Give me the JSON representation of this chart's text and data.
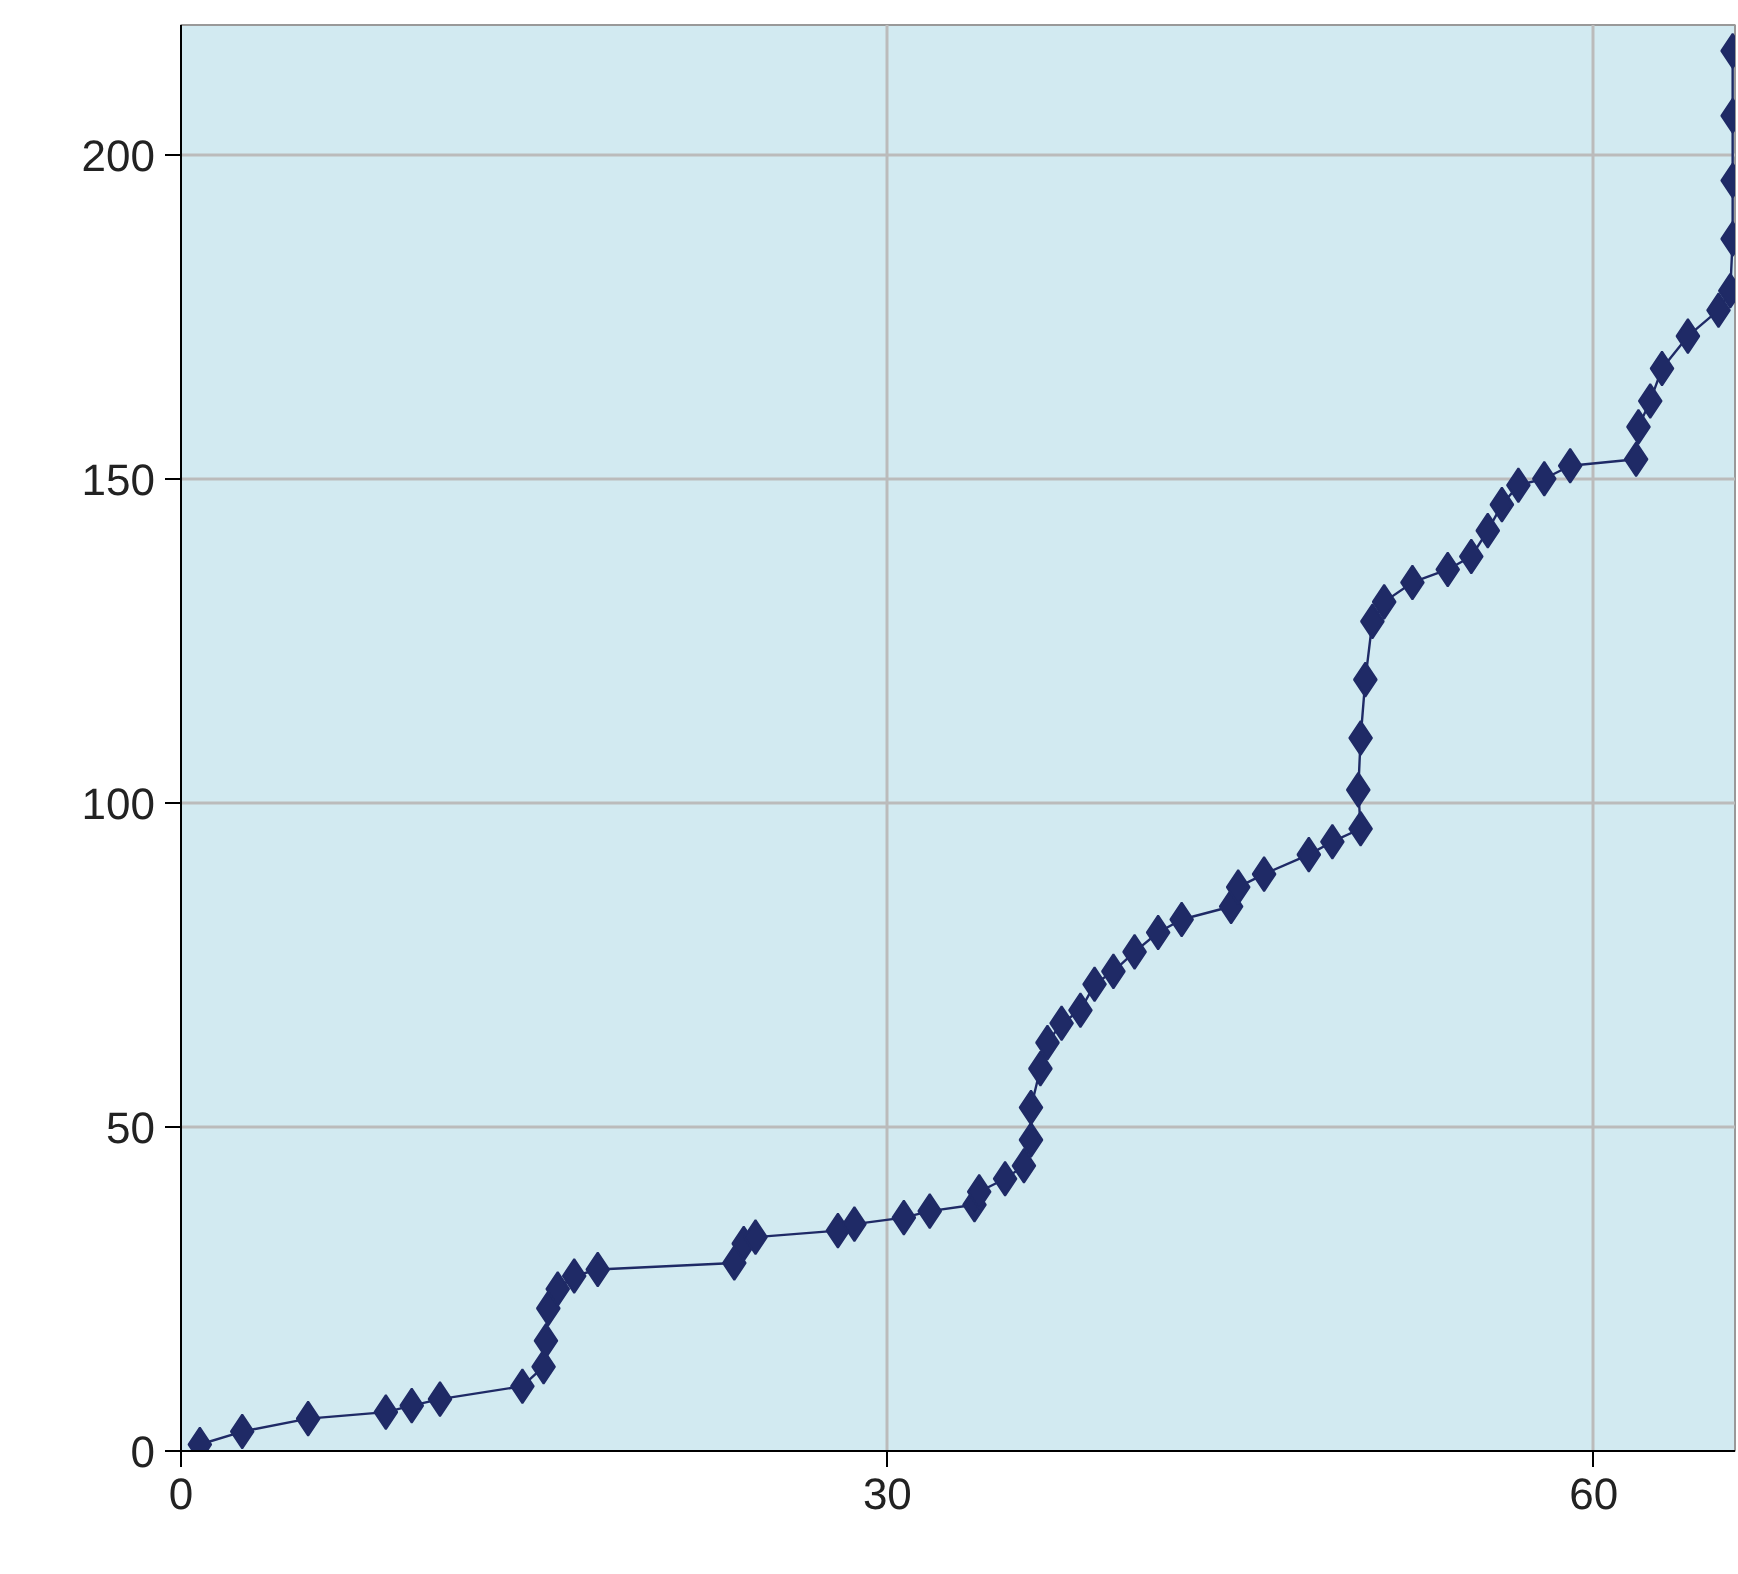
{
  "chart_data": {
    "type": "line",
    "marker": "diamond",
    "grid": true,
    "xlim": [
      0,
      66
    ],
    "ylim": [
      0,
      220
    ],
    "xticks": [
      0,
      30,
      60
    ],
    "yticks": [
      0,
      50,
      100,
      150,
      200
    ],
    "series": [
      {
        "color": "#1f2a66",
        "x": [
          0.8,
          2.6,
          5.4,
          8.7,
          9.8,
          11,
          14.5,
          15.4,
          15.5,
          15.6,
          16,
          16.7,
          17.7,
          23.5,
          23.9,
          24.4,
          27.9,
          28.6,
          30.7,
          31.8,
          33.7,
          33.9,
          35,
          35.8,
          36.1,
          36.1,
          36.5,
          36.8,
          37.4,
          38.2,
          38.8,
          39.6,
          40.5,
          41.5,
          42.5,
          44.6,
          44.9,
          46,
          47.9,
          48.9,
          50.1,
          50,
          50.1,
          50.3,
          50.6,
          51.1,
          52.3,
          53.8,
          54.8,
          55.5,
          56.1,
          56.8,
          57.9,
          59,
          61.8,
          61.9,
          62.4,
          62.9,
          64,
          65.3,
          65.8,
          65.9,
          65.9,
          65.9,
          65.9
        ],
        "values": [
          1,
          3,
          5,
          6,
          7,
          8,
          10,
          13,
          17,
          22,
          25,
          27,
          28,
          29,
          32,
          33,
          34,
          35,
          36,
          37,
          38,
          40,
          42,
          44,
          48,
          53,
          59,
          63,
          66,
          68,
          72,
          74,
          77,
          80,
          82,
          84,
          87,
          89,
          92,
          94,
          96,
          102,
          110,
          119,
          128,
          131,
          134,
          136,
          138,
          142,
          146,
          149,
          150,
          152,
          153,
          158,
          162,
          167,
          172,
          176,
          179,
          187,
          196,
          206,
          216
        ]
      }
    ]
  }
}
